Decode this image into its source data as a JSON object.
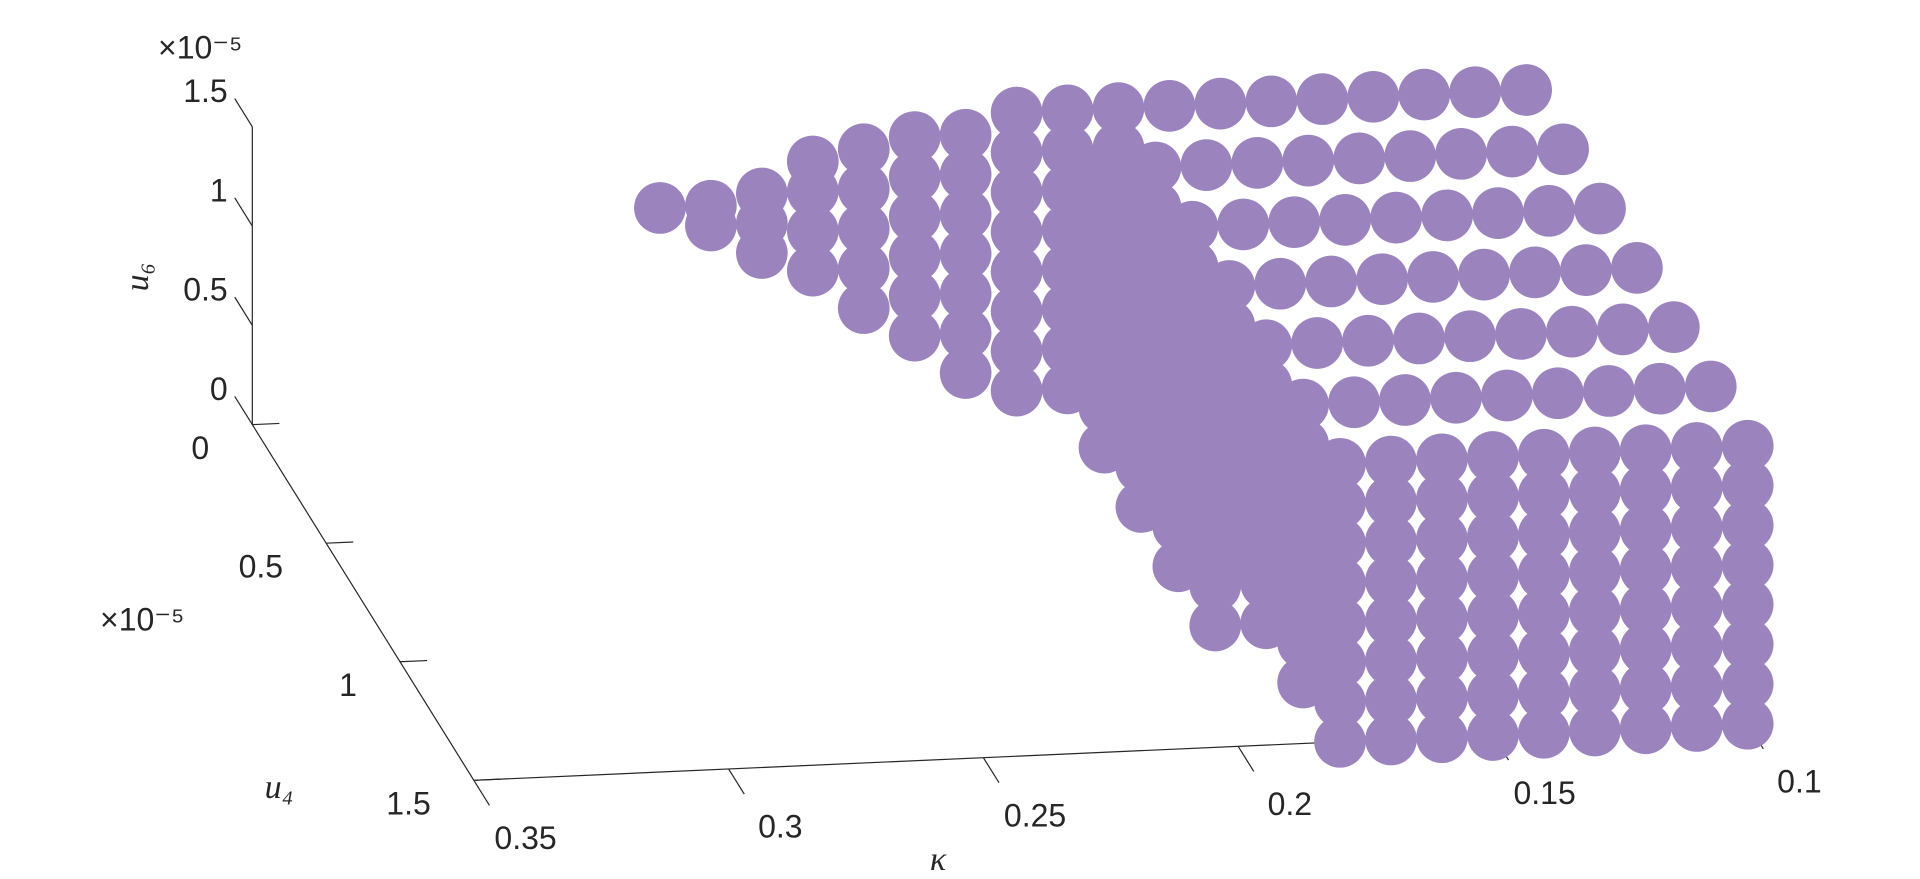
{
  "chart_data": {
    "type": "scatter3d",
    "xlabel": "κ",
    "ylabel": "u₄",
    "zlabel": "u₆",
    "y_multiplier": "×10⁻⁵",
    "z_multiplier": "×10⁻⁵",
    "color": "#9b84bd",
    "xlim": [
      0.1,
      0.35
    ],
    "ylim": [
      0,
      1.5
    ],
    "zlim": [
      0,
      1.5
    ],
    "xticks": [
      0.1,
      0.15,
      0.2,
      0.25,
      0.3,
      0.35
    ],
    "yticks": [
      0,
      0.5,
      1,
      1.5
    ],
    "zticks": [
      0,
      0.5,
      1,
      1.5
    ],
    "x": [
      0.1,
      0.1,
      0.1,
      0.1,
      0.1,
      0.1,
      0.1,
      0.11,
      0.11,
      0.11,
      0.11,
      0.11,
      0.11,
      0.11,
      0.12,
      0.12,
      0.12,
      0.12,
      0.12,
      0.12,
      0.12,
      0.13,
      0.13,
      0.13,
      0.13,
      0.13,
      0.13,
      0.13,
      0.14,
      0.14,
      0.14,
      0.14,
      0.14,
      0.14,
      0.14,
      0.15,
      0.15,
      0.15,
      0.15,
      0.15,
      0.15,
      0.15,
      0.16,
      0.16,
      0.16,
      0.16,
      0.16,
      0.16,
      0.16,
      0.17,
      0.17,
      0.17,
      0.17,
      0.17,
      0.17,
      0.17,
      0.1,
      0.1,
      0.1,
      0.1,
      0.1,
      0.1,
      0.1,
      0.11,
      0.11,
      0.11,
      0.11,
      0.11,
      0.11,
      0.11,
      0.12,
      0.12,
      0.12,
      0.12,
      0.12,
      0.12,
      0.12,
      0.13,
      0.13,
      0.13,
      0.13,
      0.13,
      0.13,
      0.13,
      0.14,
      0.14,
      0.14,
      0.14,
      0.14,
      0.14,
      0.14,
      0.15,
      0.15,
      0.15,
      0.15,
      0.15,
      0.15,
      0.15,
      0.16,
      0.16,
      0.16,
      0.16,
      0.16,
      0.16,
      0.16,
      0.17,
      0.17,
      0.17,
      0.17,
      0.17,
      0.17,
      0.17,
      0.18,
      0.18,
      0.18,
      0.18,
      0.18,
      0.18,
      0.18,
      0.18,
      0.18,
      0.18,
      0.18,
      0.18,
      0.18,
      0.18,
      0.18,
      0.18,
      0.18,
      0.18,
      0.18,
      0.18,
      0.18,
      0.18,
      0.18,
      0.18,
      0.18,
      0.18,
      0.18,
      0.18,
      0.18,
      0.18,
      0.18,
      0.18,
      0.18,
      0.18,
      0.18,
      0.18,
      0.18,
      0.18,
      0.18,
      0.18,
      0.18,
      0.18,
      0.18,
      0.18,
      0.18,
      0.18,
      0.18,
      0.18,
      0.18,
      0.18,
      0.18,
      0.18,
      0.18,
      0.18,
      0.18,
      0.18,
      0.19,
      0.19,
      0.19,
      0.19,
      0.19,
      0.19,
      0.19,
      0.19,
      0.19,
      0.19,
      0.19,
      0.19,
      0.19,
      0.19,
      0.19,
      0.19,
      0.19,
      0.19,
      0.19,
      0.19,
      0.19,
      0.19,
      0.19,
      0.19,
      0.19,
      0.19,
      0.19,
      0.19,
      0.19,
      0.19,
      0.19,
      0.19,
      0.19,
      0.19,
      0.19,
      0.19,
      0.19,
      0.19,
      0.19,
      0.19,
      0.2,
      0.2,
      0.2,
      0.2,
      0.2,
      0.2,
      0.2,
      0.2,
      0.21,
      0.21,
      0.21,
      0.21,
      0.21,
      0.21,
      0.21,
      0.22,
      0.22,
      0.22,
      0.22,
      0.22,
      0.22,
      0.23,
      0.23,
      0.23,
      0.23,
      0.23,
      0.24,
      0.24,
      0.24,
      0.24,
      0.25,
      0.25,
      0.25,
      0.26,
      0.26,
      0.27
    ],
    "y": [
      0,
      0.25,
      0.5,
      0.75,
      1,
      1.25,
      1.5,
      0,
      0.25,
      0.5,
      0.75,
      1,
      1.25,
      1.5,
      0,
      0.25,
      0.5,
      0.75,
      1,
      1.25,
      1.5,
      0,
      0.25,
      0.5,
      0.75,
      1,
      1.25,
      1.5,
      0,
      0.25,
      0.5,
      0.75,
      1,
      1.25,
      1.5,
      0,
      0.25,
      0.5,
      0.75,
      1,
      1.25,
      1.5,
      0,
      0.25,
      0.5,
      0.75,
      1,
      1.25,
      1.5,
      0,
      0.25,
      0.5,
      0.75,
      1,
      1.25,
      1.5,
      1.5,
      1.5,
      1.5,
      1.5,
      1.5,
      1.5,
      1.5,
      1.5,
      1.5,
      1.5,
      1.5,
      1.5,
      1.5,
      1.5,
      1.5,
      1.5,
      1.5,
      1.5,
      1.5,
      1.5,
      1.5,
      1.5,
      1.5,
      1.5,
      1.5,
      1.5,
      1.5,
      1.5,
      1.5,
      1.5,
      1.5,
      1.5,
      1.5,
      1.5,
      1.5,
      1.5,
      1.5,
      1.5,
      1.5,
      1.5,
      1.5,
      1.5,
      1.5,
      1.5,
      1.5,
      1.5,
      1.5,
      1.5,
      1.5,
      1.5,
      1.5,
      1.5,
      1.5,
      1.5,
      1.5,
      1.5,
      0,
      0,
      0,
      0,
      0,
      0,
      0,
      0,
      0.25,
      0.25,
      0.25,
      0.25,
      0.25,
      0.25,
      0.25,
      0.25,
      0.5,
      0.5,
      0.5,
      0.5,
      0.5,
      0.5,
      0.5,
      0.5,
      0.75,
      0.75,
      0.75,
      0.75,
      0.75,
      0.75,
      0.75,
      0.75,
      1,
      1,
      1,
      1,
      1,
      1,
      1,
      1,
      1.25,
      1.25,
      1.25,
      1.25,
      1.25,
      1.25,
      1.25,
      1.25,
      1.5,
      1.5,
      1.5,
      1.5,
      1.5,
      1.5,
      1.5,
      1.5,
      0,
      0,
      0,
      0,
      0,
      0,
      0,
      0,
      0.25,
      0.25,
      0.25,
      0.25,
      0.25,
      0.25,
      0.25,
      0.25,
      0.5,
      0.5,
      0.5,
      0.5,
      0.5,
      0.5,
      0.5,
      0.5,
      0.75,
      0.75,
      0.75,
      0.75,
      0.75,
      0.75,
      0.75,
      0.75,
      1,
      1,
      1,
      1,
      1,
      1,
      1,
      1,
      0,
      0,
      0,
      0,
      0,
      0,
      0,
      0,
      0,
      0,
      0,
      0,
      0,
      0,
      0,
      0,
      0,
      0,
      0,
      0,
      0,
      0,
      0,
      0,
      0,
      0,
      0,
      0,
      0,
      0,
      0,
      0,
      0,
      0,
      0,
      0
    ],
    "z": [
      1.4,
      1.4,
      1.4,
      1.4,
      1.4,
      1.4,
      1.4,
      1.4,
      1.4,
      1.4,
      1.4,
      1.4,
      1.4,
      1.4,
      1.4,
      1.4,
      1.4,
      1.4,
      1.4,
      1.4,
      1.4,
      1.4,
      1.4,
      1.4,
      1.4,
      1.4,
      1.4,
      1.4,
      1.4,
      1.4,
      1.4,
      1.4,
      1.4,
      1.4,
      1.4,
      1.4,
      1.4,
      1.4,
      1.4,
      1.4,
      1.4,
      1.4,
      1.4,
      1.4,
      1.4,
      1.4,
      1.4,
      1.4,
      1.4,
      1.4,
      1.4,
      1.4,
      1.4,
      1.4,
      1.4,
      1.4,
      0,
      0.2,
      0.4,
      0.6,
      0.8,
      1,
      1.2,
      0,
      0.2,
      0.4,
      0.6,
      0.8,
      1,
      1.2,
      0,
      0.2,
      0.4,
      0.6,
      0.8,
      1,
      1.2,
      0,
      0.2,
      0.4,
      0.6,
      0.8,
      1,
      1.2,
      0,
      0.2,
      0.4,
      0.6,
      0.8,
      1,
      1.2,
      0,
      0.2,
      0.4,
      0.6,
      0.8,
      1,
      1.2,
      0,
      0.2,
      0.4,
      0.6,
      0.8,
      1,
      1.2,
      0,
      0.2,
      0.4,
      0.6,
      0.8,
      1,
      1.2,
      0,
      0.2,
      0.4,
      0.6,
      0.8,
      1,
      1.2,
      1.4,
      0,
      0.2,
      0.4,
      0.6,
      0.8,
      1,
      1.2,
      1.4,
      0,
      0.2,
      0.4,
      0.6,
      0.8,
      1,
      1.2,
      1.4,
      0,
      0.2,
      0.4,
      0.6,
      0.8,
      1,
      1.2,
      1.4,
      0,
      0.2,
      0.4,
      0.6,
      0.8,
      1,
      1.2,
      1.4,
      0,
      0.2,
      0.4,
      0.6,
      0.8,
      1,
      1.2,
      1.4,
      0,
      0.2,
      0.4,
      0.6,
      0.8,
      1,
      1.2,
      1.4,
      0,
      0.2,
      0.4,
      0.6,
      0.8,
      1,
      1.2,
      1.4,
      0,
      0.2,
      0.4,
      0.6,
      0.8,
      1,
      1.2,
      1.4,
      0,
      0.2,
      0.4,
      0.6,
      0.8,
      1,
      1.2,
      1.4,
      0,
      0.2,
      0.4,
      0.6,
      0.8,
      1,
      1.2,
      1.4,
      0,
      0.2,
      0.4,
      0.6,
      0.8,
      1,
      1.2,
      1.4,
      0,
      0.2,
      0.4,
      0.6,
      0.8,
      1,
      1.2,
      1.4,
      0.1,
      0.3,
      0.5,
      0.7,
      0.9,
      1.1,
      1.3,
      0.3,
      0.5,
      0.7,
      0.9,
      1.1,
      1.3,
      0.45,
      0.65,
      0.85,
      1.05,
      1.25,
      0.65,
      0.85,
      1.05,
      1.2,
      0.75,
      0.9,
      1.05,
      0.9,
      1,
      1
    ]
  }
}
